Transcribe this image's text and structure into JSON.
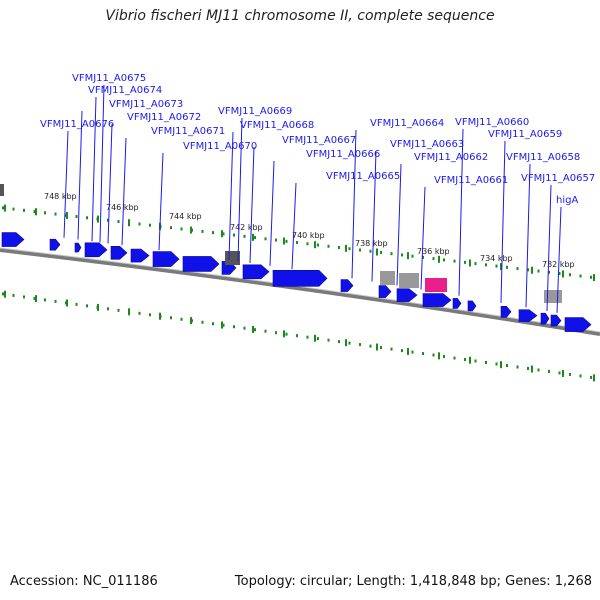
{
  "title": "Vibrio fischeri MJ11 chromosome II, complete sequence",
  "footer": {
    "accession": "Accession: NC_011186",
    "summary": "Topology: circular; Length: 1,418,848 bp; Genes: 1,268"
  },
  "kbp_labels": [
    "748 kbp",
    "746 kbp",
    "744 kbp",
    "742 kbp",
    "740 kbp",
    "738 kbp",
    "736 kbp",
    "734 kbp",
    "732 kbp"
  ],
  "gene_labels": [
    "VFMJ11_A0675",
    "VFMJ11_A0674",
    "VFMJ11_A0673",
    "VFMJ11_A0676",
    "VFMJ11_A0672",
    "VFMJ11_A0671",
    "VFMJ11_A0670",
    "VFMJ11_A0669",
    "VFMJ11_A0668",
    "VFMJ11_A0667",
    "VFMJ11_A0666",
    "VFMJ11_A0665",
    "VFMJ11_A0664",
    "VFMJ11_A0663",
    "VFMJ11_A0662",
    "VFMJ11_A0661",
    "VFMJ11_A0660",
    "VFMJ11_A0659",
    "VFMJ11_A0658",
    "VFMJ11_A0657",
    "higA"
  ],
  "colors": {
    "gene": "#1010e8",
    "gene_highlight": "#e8208a",
    "feature_gray": "#999999",
    "feature_dark": "#555555",
    "backbone": "#808080",
    "tick": "#1a8a1a",
    "label": "#1a1aee"
  }
}
